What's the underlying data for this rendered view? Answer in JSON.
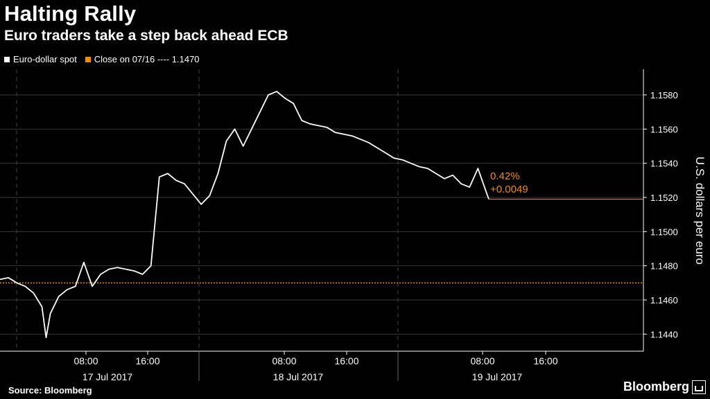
{
  "chart_data": {
    "type": "line",
    "title": "Halting Rally",
    "subtitle": "Euro traders take a step back ahead ECB",
    "ylabel": "U.S. dollars per euro",
    "ylim": [
      1.143,
      1.1595
    ],
    "y_ticks": [
      "1.1580",
      "1.1560",
      "1.1540",
      "1.1520",
      "1.1500",
      "1.1480",
      "1.1460",
      "1.1440"
    ],
    "legend": [
      {
        "label": "Euro-dollar spot",
        "color": "#ffffff"
      },
      {
        "label": "Close on 07/16 ---- 1.1470",
        "color": "#f28c00"
      }
    ],
    "reference_line": {
      "value": 1.147,
      "color": "#f28c00"
    },
    "x_time_labels": [
      "08:00",
      "16:00",
      "08:00",
      "16:00",
      "08:00",
      "16:00"
    ],
    "x_day_labels": [
      "17 Jul 2017",
      "18 Jul 2017",
      "19 Jul 2017"
    ],
    "annotation": {
      "pct": "0.42%",
      "change": "+0.0049",
      "value": 1.1519
    },
    "series": [
      {
        "name": "Euro-dollar spot",
        "color": "#ffffff",
        "x": [
          0,
          1,
          2,
          3,
          4,
          5,
          5.5,
          6,
          7,
          8,
          9,
          10,
          11,
          12,
          13,
          14,
          15,
          16,
          17,
          18,
          19,
          20,
          21,
          22,
          23,
          24,
          25,
          26,
          27,
          28,
          29,
          30,
          31,
          32,
          33,
          34,
          35,
          36,
          37,
          38,
          39,
          40,
          41,
          42,
          43,
          44,
          45,
          46,
          47,
          48,
          49,
          50,
          51,
          52,
          53,
          54,
          55,
          56,
          57,
          58,
          58.3
        ],
        "y": [
          1.1472,
          1.1473,
          1.147,
          1.1468,
          1.1464,
          1.1456,
          1.1438,
          1.1452,
          1.1462,
          1.1466,
          1.1468,
          1.1482,
          1.1468,
          1.1475,
          1.1478,
          1.1479,
          1.1478,
          1.1477,
          1.1475,
          1.148,
          1.1532,
          1.1534,
          1.153,
          1.1528,
          1.1522,
          1.1516,
          1.1521,
          1.1534,
          1.1553,
          1.156,
          1.155,
          1.156,
          1.157,
          1.158,
          1.1582,
          1.1578,
          1.1575,
          1.1565,
          1.1563,
          1.1562,
          1.1561,
          1.1558,
          1.1557,
          1.1556,
          1.1554,
          1.1552,
          1.1549,
          1.1546,
          1.1543,
          1.1542,
          1.154,
          1.1538,
          1.1537,
          1.1534,
          1.1531,
          1.1533,
          1.1528,
          1.1526,
          1.1537,
          1.1523,
          1.1519
        ]
      }
    ]
  },
  "footer": {
    "source": "Source: Bloomberg",
    "brand": "Bloomberg"
  }
}
